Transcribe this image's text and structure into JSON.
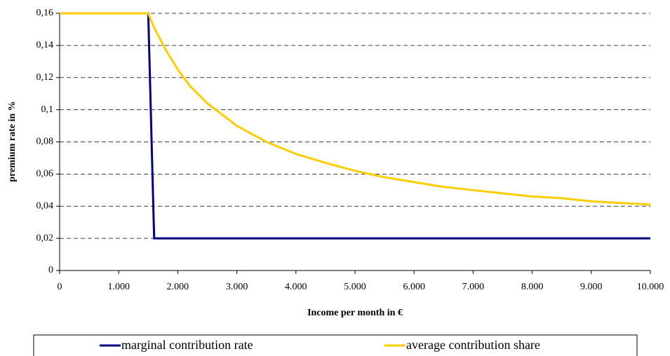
{
  "chart_data": {
    "type": "line",
    "xlabel": "Income per month in €",
    "ylabel": "premium rate in %",
    "x": [
      0,
      500,
      1000,
      1500,
      1600,
      1800,
      2000,
      2200,
      2500,
      3000,
      3500,
      4000,
      4500,
      5000,
      5500,
      6000,
      6500,
      7000,
      7500,
      8000,
      8500,
      9000,
      9500,
      10000
    ],
    "series": [
      {
        "name": "marginal contribution rate",
        "color": "#000080",
        "values": [
          0.16,
          0.16,
          0.16,
          0.16,
          0.02,
          0.02,
          0.02,
          0.02,
          0.02,
          0.02,
          0.02,
          0.02,
          0.02,
          0.02,
          0.02,
          0.02,
          0.02,
          0.02,
          0.02,
          0.02,
          0.02,
          0.02,
          0.02,
          0.02
        ]
      },
      {
        "name": "average contribution share",
        "color": "#FFCC00",
        "values": [
          0.16,
          0.16,
          0.16,
          0.16,
          0.151,
          0.137,
          0.125,
          0.115,
          0.104,
          0.09,
          0.08,
          0.0725,
          0.067,
          0.062,
          0.058,
          0.055,
          0.052,
          0.05,
          0.048,
          0.046,
          0.045,
          0.043,
          0.042,
          0.041
        ]
      }
    ],
    "xlim": [
      0,
      10000
    ],
    "xticks": [
      0,
      {
        "value": 1000,
        "label": "1.000"
      },
      {
        "value": 2000,
        "label": "2.000"
      },
      {
        "value": 3000,
        "label": "3.000"
      },
      {
        "value": 4000,
        "label": "4.000"
      },
      {
        "value": 5000,
        "label": "5.000"
      },
      {
        "value": 6000,
        "label": "6.000"
      },
      {
        "value": 7000,
        "label": "7.000"
      },
      {
        "value": 8000,
        "label": "8.000"
      },
      {
        "value": 9000,
        "label": "9.000"
      },
      {
        "value": 10000,
        "label": "10.000"
      }
    ],
    "ylim": [
      0,
      0.16
    ],
    "yticks": [
      0,
      {
        "value": 0.02,
        "label": "0,02"
      },
      {
        "value": 0.04,
        "label": "0,04"
      },
      {
        "value": 0.06,
        "label": "0,06"
      },
      {
        "value": 0.08,
        "label": "0,08"
      },
      {
        "value": 0.1,
        "label": "0,1"
      },
      {
        "value": 0.12,
        "label": "0,12"
      },
      {
        "value": 0.14,
        "label": "0,14"
      },
      {
        "value": 0.16,
        "label": "0,16"
      }
    ],
    "grid": true,
    "legend": "bottom"
  }
}
